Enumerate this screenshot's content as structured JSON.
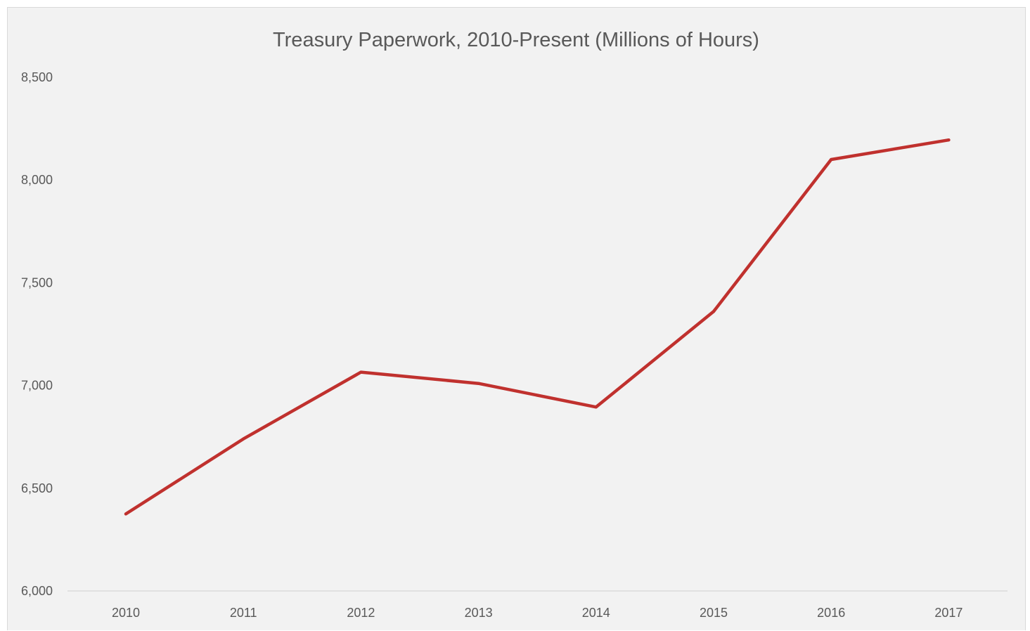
{
  "chart_data": {
    "type": "line",
    "title": "Treasury Paperwork, 2010-Present (Millions of Hours)",
    "xlabel": "",
    "ylabel": "",
    "categories": [
      "2010",
      "2011",
      "2012",
      "2013",
      "2014",
      "2015",
      "2016",
      "2017"
    ],
    "series": [
      {
        "values": [
          6375,
          6740,
          7065,
          7010,
          6895,
          7360,
          8100,
          8195
        ]
      }
    ],
    "ylim": [
      6000,
      8500
    ],
    "y_ticks": [
      6000,
      6500,
      7000,
      7500,
      8000,
      8500
    ],
    "y_tick_labels": [
      "6,000",
      "6,500",
      "7,000",
      "7,500",
      "8,000",
      "8,500"
    ],
    "grid": false,
    "legend": "none",
    "line_color": "#c0312e",
    "background_color": "#f2f2f2"
  }
}
